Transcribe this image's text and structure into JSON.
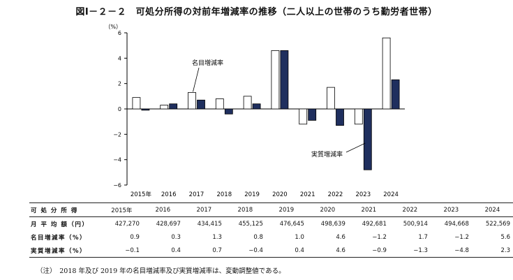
{
  "title": "図Ⅰ－２－２　可処分所得の対前年増減率の推移（二人以上の世帯のうち勤労者世帯）",
  "chart_data": {
    "type": "bar",
    "title": "図Ⅰ－２－２　可処分所得の対前年増減率の推移（二人以上の世帯のうち勤労者世帯）",
    "ylabel": "（%）",
    "ylim": [
      -6,
      6
    ],
    "yticks": [
      6,
      4,
      2,
      0,
      -2,
      -4,
      -6
    ],
    "ytick_labels": [
      "6",
      "4",
      "2",
      "0",
      "−2",
      "−4",
      "−6"
    ],
    "categories": [
      "2015年",
      "2016",
      "2017",
      "2018",
      "2019",
      "2020",
      "2021",
      "2022",
      "2023",
      "2024"
    ],
    "series": [
      {
        "name": "名目増減率",
        "values": [
          0.9,
          0.3,
          1.3,
          0.8,
          1.0,
          4.6,
          -1.2,
          1.7,
          -1.2,
          5.6
        ],
        "color": "#ffffff",
        "stroke": "#000000"
      },
      {
        "name": "実質増減率",
        "values": [
          -0.1,
          0.4,
          0.7,
          -0.4,
          0.4,
          4.6,
          -0.9,
          -1.3,
          -4.8,
          2.3
        ],
        "color": "#1f2f5e",
        "stroke": "#000000"
      }
    ],
    "annotations": [
      "名目増減率",
      "実質増減率"
    ],
    "grid": false,
    "legend": "none"
  },
  "table": {
    "header_label": "可 処 分 所 得",
    "years": [
      "2015年",
      "2016",
      "2017",
      "2018",
      "2019",
      "2020",
      "2021",
      "2022",
      "2023",
      "2024"
    ],
    "rows": [
      {
        "label": "月 平 均 額（円）",
        "values": [
          "427,270",
          "428,697",
          "434,415",
          "455,125",
          "476,645",
          "498,639",
          "492,681",
          "500,914",
          "494,668",
          "522,569"
        ]
      },
      {
        "label": "名目増減率（%）",
        "values": [
          "0.9",
          "0.3",
          "1.3",
          "0.8",
          "1.0",
          "4.6",
          "−1.2",
          "1.7",
          "−1.2",
          "5.6"
        ]
      },
      {
        "label": "実質増減率（%）",
        "values": [
          "−0.1",
          "0.4",
          "0.7",
          "−0.4",
          "0.4",
          "4.6",
          "−0.9",
          "−1.3",
          "−4.8",
          "2.3"
        ]
      }
    ]
  },
  "note": "（注）　2018 年及び 2019 年の名目増減率及び実質増減率は、変動調整値である。"
}
